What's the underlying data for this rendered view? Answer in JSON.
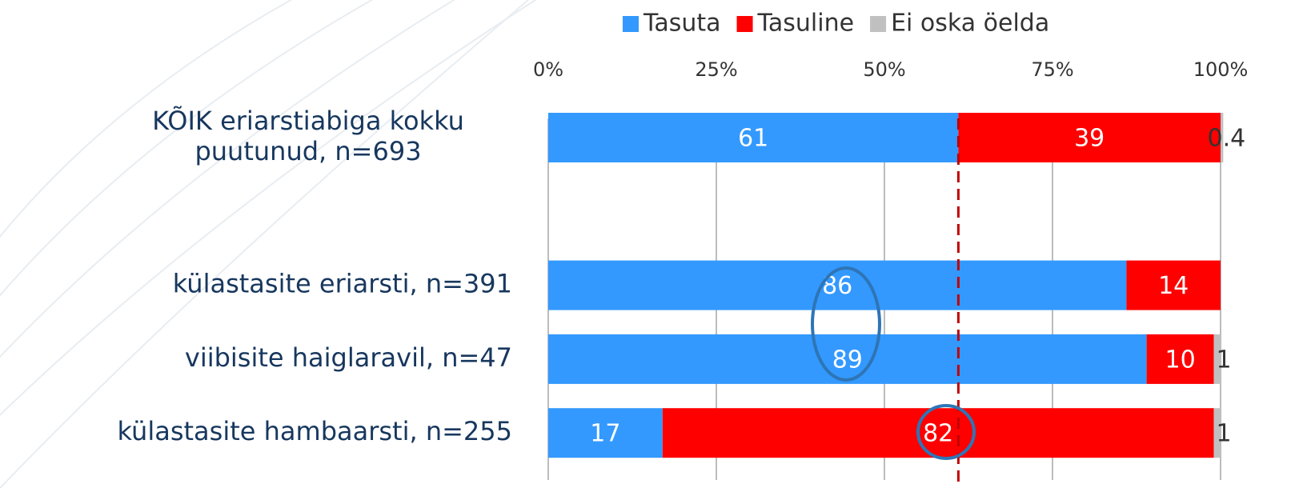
{
  "chart_data": {
    "type": "stacked_barh",
    "categories": [
      "KÕIK eriarstiabiga kokku\npuutunud, n=693",
      null,
      "külastasite eriarsti, n=391",
      "viibisite haiglaravil, n=47",
      "külastasite hambaarsti, n=255"
    ],
    "series": [
      {
        "name": "Tasuta",
        "color": "#3399ff",
        "values": [
          61,
          null,
          86,
          89,
          17
        ]
      },
      {
        "name": "Tasuline",
        "color": "#ff0000",
        "values": [
          39,
          null,
          14,
          10,
          82
        ]
      },
      {
        "name": "Ei oska öelda",
        "color": "#c0c0c0",
        "values": [
          0.4,
          null,
          null,
          1,
          1
        ]
      }
    ],
    "xlim": [
      0,
      100
    ],
    "xticks": [
      {
        "value": 0,
        "label": "0%"
      },
      {
        "value": 25,
        "label": "25%"
      },
      {
        "value": 50,
        "label": "50%"
      },
      {
        "value": 75,
        "label": "75%"
      },
      {
        "value": 100,
        "label": "100%"
      }
    ],
    "grid": true,
    "reference_line": 61,
    "legend": "top"
  }
}
